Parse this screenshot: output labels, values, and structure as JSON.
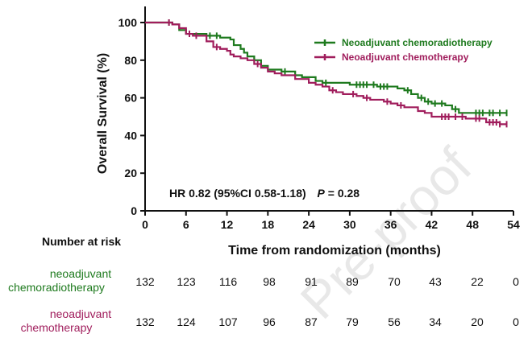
{
  "chart_data": {
    "type": "line",
    "subtype": "kaplan-meier",
    "title": "",
    "xlabel": "Time from randomization (months)",
    "ylabel": "Overall Survival (%)",
    "xlim": [
      0,
      54
    ],
    "ylim": [
      0,
      100
    ],
    "xticks": [
      0,
      6,
      12,
      18,
      24,
      30,
      36,
      42,
      48,
      54
    ],
    "yticks": [
      0,
      20,
      40,
      60,
      80,
      100
    ],
    "grid": false,
    "legend_position": "top-right",
    "annotation": {
      "hr_text": "HR 0.82 (95%CI 0.58-1.18)",
      "p_label": "P",
      "p_text": " = 0.28"
    },
    "series": [
      {
        "name": "Neoadjuvant chemoradiotherapy",
        "color": "#1e7a1e",
        "points": [
          [
            0,
            100
          ],
          [
            3,
            100
          ],
          [
            4,
            99
          ],
          [
            5,
            96
          ],
          [
            6,
            94
          ],
          [
            8,
            94
          ],
          [
            9,
            93
          ],
          [
            10,
            93
          ],
          [
            11,
            92
          ],
          [
            12,
            92
          ],
          [
            12.5,
            91
          ],
          [
            13,
            88
          ],
          [
            14,
            86
          ],
          [
            14.5,
            84
          ],
          [
            15,
            82
          ],
          [
            16,
            80
          ],
          [
            17,
            77
          ],
          [
            18,
            75
          ],
          [
            19,
            75
          ],
          [
            20,
            74
          ],
          [
            21,
            74
          ],
          [
            22,
            72
          ],
          [
            23,
            71
          ],
          [
            24,
            71
          ],
          [
            25,
            69
          ],
          [
            26,
            68
          ],
          [
            27,
            68
          ],
          [
            29,
            68
          ],
          [
            30,
            67
          ],
          [
            33,
            67
          ],
          [
            34,
            66
          ],
          [
            36,
            66
          ],
          [
            37,
            65
          ],
          [
            38,
            64
          ],
          [
            39,
            62
          ],
          [
            40,
            60
          ],
          [
            41,
            58
          ],
          [
            42,
            57
          ],
          [
            43,
            57
          ],
          [
            44,
            56
          ],
          [
            45,
            54
          ],
          [
            46,
            52
          ],
          [
            48,
            52
          ],
          [
            50,
            52
          ],
          [
            52,
            52
          ],
          [
            53,
            52
          ]
        ],
        "censor_x": [
          3.5,
          9.5,
          10.5,
          16,
          20.5,
          26.5,
          31,
          31.5,
          32,
          32.5,
          33.5,
          34.5,
          35,
          35.5,
          38.5,
          40.5,
          41.5,
          42.5,
          43.5,
          45.5,
          48.5,
          49,
          49.5,
          50.5,
          51,
          52,
          53
        ]
      },
      {
        "name": "Neoadjuvant chemotherapy",
        "color": "#a01d5c",
        "points": [
          [
            0,
            100
          ],
          [
            3,
            100
          ],
          [
            4,
            99
          ],
          [
            5,
            97
          ],
          [
            6,
            94
          ],
          [
            7,
            93
          ],
          [
            8,
            93
          ],
          [
            9,
            90
          ],
          [
            10,
            87
          ],
          [
            11,
            86
          ],
          [
            12,
            85
          ],
          [
            12.5,
            83
          ],
          [
            13,
            82
          ],
          [
            14,
            81
          ],
          [
            15,
            80
          ],
          [
            16,
            78
          ],
          [
            17,
            76
          ],
          [
            18,
            74
          ],
          [
            19,
            73
          ],
          [
            20,
            72
          ],
          [
            22,
            70
          ],
          [
            24,
            68
          ],
          [
            25,
            67
          ],
          [
            26,
            66
          ],
          [
            27,
            64
          ],
          [
            28,
            63
          ],
          [
            29,
            62
          ],
          [
            30,
            62
          ],
          [
            31,
            61
          ],
          [
            32,
            60
          ],
          [
            33,
            59
          ],
          [
            34,
            59
          ],
          [
            35,
            58
          ],
          [
            36,
            57
          ],
          [
            37,
            56
          ],
          [
            38,
            55
          ],
          [
            40,
            53
          ],
          [
            41,
            52
          ],
          [
            42,
            50
          ],
          [
            43,
            50
          ],
          [
            45,
            50
          ],
          [
            46,
            50
          ],
          [
            47,
            49
          ],
          [
            48,
            49
          ],
          [
            50,
            47
          ],
          [
            52,
            46
          ],
          [
            53,
            46
          ]
        ],
        "censor_x": [
          3.5,
          6.5,
          7.5,
          10.5,
          16.5,
          27.5,
          30.5,
          32.5,
          35.5,
          37.5,
          43.5,
          44,
          44.5,
          45.5,
          46.5,
          48.5,
          49,
          50.5,
          51,
          51.5,
          52,
          53
        ]
      }
    ]
  },
  "risk_table": {
    "header": "Number at risk",
    "groups": [
      {
        "label_line1": "neoadjuvant",
        "label_line2": "chemoradiotherapy",
        "color": "#1e7a1e",
        "values": [
          132,
          123,
          116,
          98,
          91,
          89,
          70,
          43,
          22,
          0
        ]
      },
      {
        "label_line1": "neoadjuvant",
        "label_line2": "chemotherapy",
        "color": "#a01d5c",
        "values": [
          132,
          124,
          107,
          96,
          87,
          79,
          56,
          34,
          20,
          0
        ]
      }
    ]
  },
  "watermark": "Pre-proof"
}
